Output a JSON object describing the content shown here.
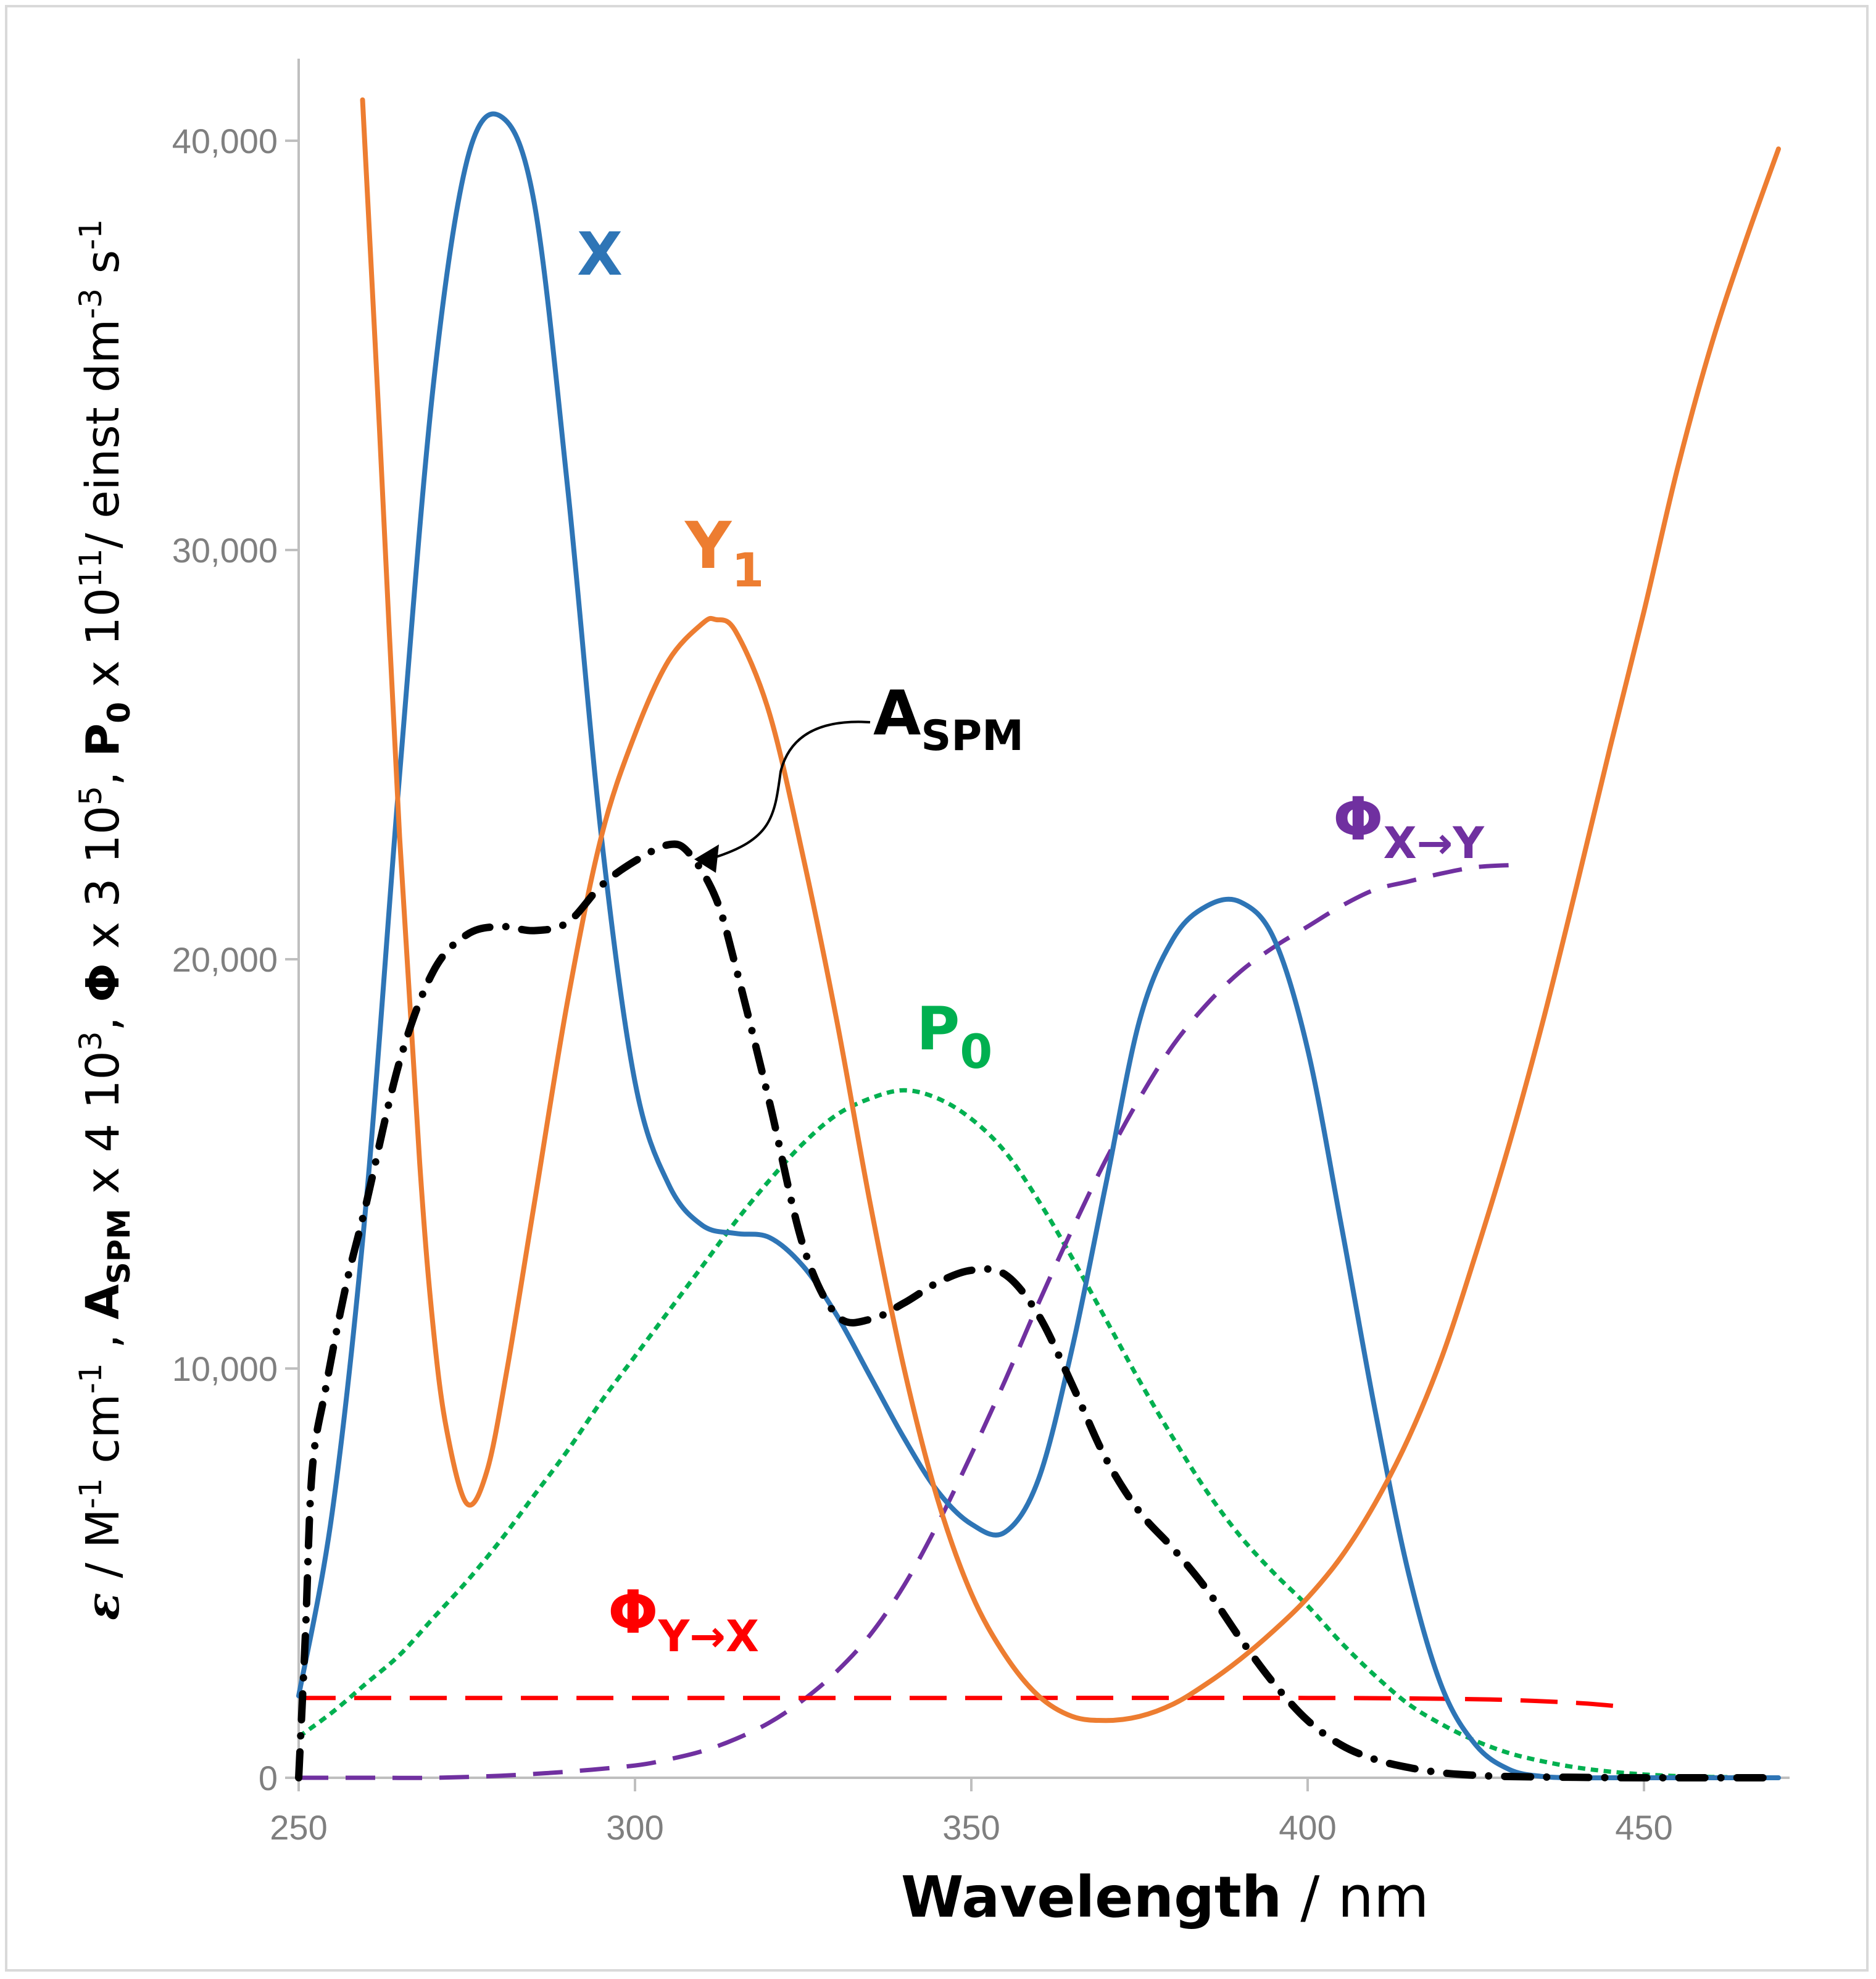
{
  "chart_data": {
    "type": "line",
    "xlabel": "Wavelength",
    "xunit": "/ nm",
    "ylabel": {
      "eps": "ε",
      "p1": " / M",
      "exp1": "-1",
      "p2": " cm",
      "exp2": "-1",
      "p3": " , ",
      "a": "A",
      "a_sub": "SPM",
      "p4": " x 4 10",
      "exp3": "3",
      "p5": ", ",
      "phi": "Φ",
      "p6": "  x 3 10",
      "exp4": "5",
      "p7": ", ",
      "p0": "P",
      "p0_sub": "0",
      "p8": "  x 10",
      "exp5": "11",
      "p9": "/  einst dm",
      "exp6": "-3",
      "p10": " s",
      "exp7": "-1"
    },
    "xlim": [
      250,
      470
    ],
    "ylim": [
      0,
      41000
    ],
    "xticks": [
      250,
      300,
      350,
      400,
      450
    ],
    "xtick_labels": [
      "250",
      "300",
      "350",
      "400",
      "450"
    ],
    "yticks": [
      0,
      10000,
      20000,
      30000,
      40000
    ],
    "ytick_labels": [
      "0",
      "10,000",
      "20,000",
      "30,000",
      "40,000"
    ],
    "series": [
      {
        "name": "X",
        "color": "#2e75b6",
        "style": "solid",
        "label": {
          "main": "X",
          "sub": ""
        },
        "x": [
          250,
          255,
          260,
          265,
          270,
          275,
          280,
          285,
          290,
          295,
          300,
          305,
          310,
          315,
          320,
          325,
          330,
          335,
          340,
          345,
          350,
          355,
          360,
          365,
          370,
          375,
          380,
          385,
          390,
          395,
          400,
          405,
          410,
          415,
          420,
          425,
          430,
          435,
          440,
          445,
          450,
          455,
          460,
          465,
          470
        ],
        "y": [
          2000,
          6500,
          14000,
          24500,
          34000,
          39500,
          40600,
          38500,
          31500,
          23000,
          17000,
          14500,
          13500,
          13300,
          13200,
          12500,
          11300,
          9800,
          8300,
          7000,
          6200,
          6000,
          7300,
          10500,
          14500,
          18500,
          20500,
          21300,
          21400,
          20500,
          17800,
          13500,
          9000,
          5000,
          2200,
          800,
          200,
          30,
          0,
          0,
          0,
          0,
          0,
          0,
          0
        ]
      },
      {
        "name": "Y1",
        "color": "#ed7d31",
        "style": "solid",
        "label": {
          "main": "Y",
          "sub": "1"
        },
        "x": [
          259.5,
          262,
          265,
          268,
          270,
          272,
          275,
          278,
          281,
          285,
          290,
          295,
          300,
          305,
          310,
          312,
          315,
          320,
          325,
          330,
          335,
          340,
          345,
          350,
          355,
          360,
          365,
          370,
          375,
          380,
          385,
          390,
          395,
          400,
          405,
          410,
          415,
          420,
          425,
          430,
          435,
          440,
          445,
          450,
          455,
          460,
          465,
          470
        ],
        "y": [
          41000,
          33000,
          23000,
          15000,
          11000,
          8500,
          6700,
          7500,
          10000,
          14000,
          19000,
          23000,
          25500,
          27300,
          28200,
          28300,
          28000,
          26000,
          22500,
          18500,
          14000,
          10000,
          6800,
          4500,
          3000,
          2000,
          1500,
          1400,
          1500,
          1800,
          2300,
          2900,
          3600,
          4400,
          5400,
          6700,
          8300,
          10300,
          12800,
          15500,
          18500,
          21800,
          25200,
          28500,
          32000,
          35000,
          37500,
          39800
        ]
      },
      {
        "name": "A_SPM",
        "color": "#000000",
        "style": "dashdot",
        "label": {
          "main": "A",
          "sub": "SPM"
        },
        "x": [
          250,
          251,
          252,
          254,
          257,
          260,
          265,
          270,
          275,
          280,
          285,
          290,
          295,
          300,
          305,
          308,
          312,
          315,
          320,
          325,
          330,
          335,
          340,
          345,
          350,
          355,
          360,
          365,
          370,
          375,
          380,
          385,
          390,
          395,
          400,
          405,
          410,
          415,
          420,
          425,
          430,
          440,
          450,
          460,
          470
        ],
        "y": [
          0,
          3500,
          7500,
          9500,
          12000,
          14000,
          17500,
          19700,
          20600,
          20800,
          20700,
          20900,
          21800,
          22400,
          22800,
          22600,
          21500,
          19800,
          16500,
          13000,
          11300,
          11200,
          11600,
          12100,
          12400,
          12300,
          11300,
          9600,
          7800,
          6500,
          5600,
          4600,
          3400,
          2300,
          1400,
          800,
          450,
          250,
          120,
          60,
          30,
          10,
          0,
          0,
          0
        ]
      },
      {
        "name": "P0",
        "color": "#00b050",
        "style": "dotted",
        "label": {
          "main": "P",
          "sub": "0"
        },
        "x": [
          250,
          255,
          260,
          265,
          270,
          275,
          280,
          285,
          290,
          295,
          300,
          305,
          310,
          315,
          320,
          325,
          330,
          335,
          340,
          345,
          350,
          355,
          360,
          365,
          370,
          375,
          380,
          385,
          390,
          395,
          400,
          405,
          410,
          415,
          420,
          425,
          430,
          435,
          440,
          445,
          450,
          455,
          460,
          465,
          470
        ],
        "y": [
          1000,
          1600,
          2300,
          3000,
          3900,
          4800,
          5800,
          6900,
          8000,
          9200,
          10300,
          11400,
          12500,
          13600,
          14600,
          15500,
          16200,
          16600,
          16800,
          16600,
          16100,
          15300,
          14100,
          12700,
          11200,
          9700,
          8300,
          7000,
          5900,
          5000,
          4200,
          3300,
          2500,
          1800,
          1300,
          900,
          600,
          400,
          250,
          150,
          80,
          40,
          20,
          10,
          0
        ]
      },
      {
        "name": "Φ(X→Y)",
        "color": "#7030a0",
        "style": "dashed",
        "label": {
          "main": "Φ",
          "sub": "X→Y"
        },
        "x": [
          250,
          260,
          270,
          280,
          290,
          300,
          305,
          310,
          315,
          320,
          325,
          330,
          335,
          340,
          345,
          350,
          355,
          360,
          365,
          370,
          375,
          380,
          385,
          390,
          395,
          400,
          405,
          410,
          415,
          420,
          425,
          430
        ],
        "y": [
          0,
          0,
          0,
          50,
          150,
          300,
          450,
          650,
          950,
          1350,
          1900,
          2600,
          3500,
          4700,
          6200,
          7900,
          9700,
          11600,
          13400,
          15100,
          16600,
          17900,
          18900,
          19700,
          20300,
          20800,
          21300,
          21700,
          21900,
          22100,
          22250,
          22300
        ]
      },
      {
        "name": "Φ(Y→X)",
        "color": "#ff0000",
        "style": "longdash",
        "label": {
          "main": "Φ",
          "sub": "Y→X"
        },
        "x": [
          250,
          300,
          350,
          400,
          420,
          430,
          440,
          446
        ],
        "y": [
          1950,
          1950,
          1950,
          1950,
          1930,
          1900,
          1830,
          1750
        ]
      }
    ]
  }
}
